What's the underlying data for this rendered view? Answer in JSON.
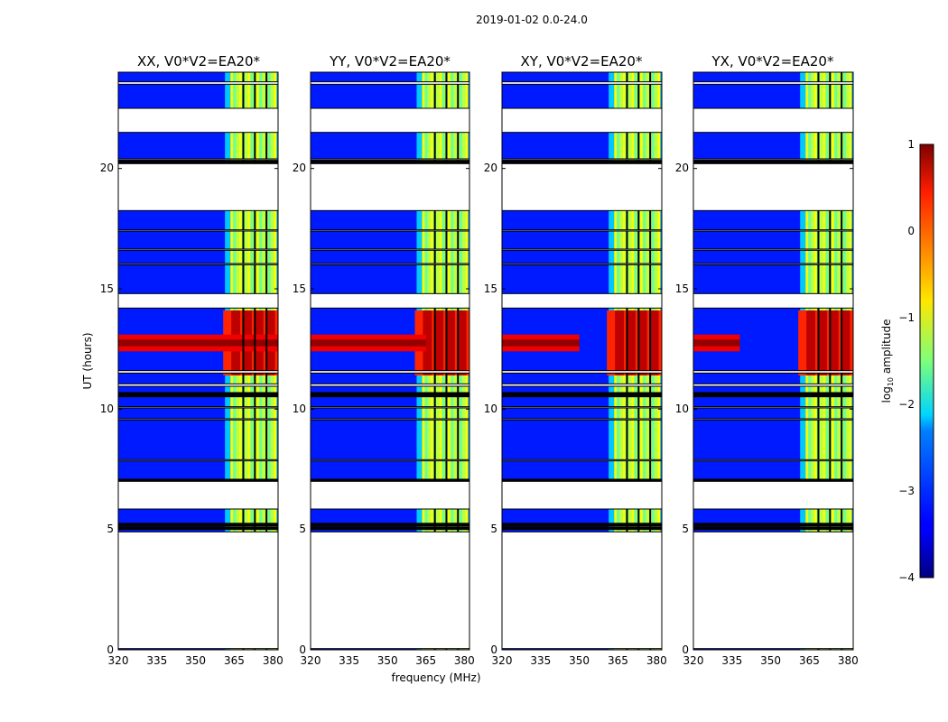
{
  "suptitle": "2019-01-02 0.0-24.0",
  "chart_data": {
    "type": "heatmap",
    "title": "2019-01-02 0.0-24.0",
    "xlabel": "frequency (MHz)",
    "ylabel": "UT (hours)",
    "xlim": [
      320,
      382
    ],
    "ylim": [
      0,
      24
    ],
    "xticks": [
      320,
      335,
      350,
      365,
      380
    ],
    "yticks": [
      0,
      5,
      10,
      15,
      20
    ],
    "colorbar": {
      "label": "log",
      "label_sub": "10",
      "label_rest": " amplitude",
      "range": [
        -4,
        1
      ],
      "ticks": [
        "1",
        "0",
        "−1",
        "−2",
        "−3",
        "−4"
      ],
      "colormap": "jet"
    },
    "panels": [
      {
        "title": "XX, V0*V2=EA20*",
        "strong_band_freq": [
          320,
          382
        ]
      },
      {
        "title": "YY, V0*V2=EA20*",
        "strong_band_freq": [
          320,
          365
        ]
      },
      {
        "title": "XY, V0*V2=EA20*",
        "strong_band_freq": [
          320,
          350
        ]
      },
      {
        "title": "YX, V0*V2=EA20*",
        "strong_band_freq": [
          320,
          338
        ]
      }
    ],
    "data_segments_hours": [
      [
        0.0,
        0.05
      ],
      [
        4.9,
        5.0
      ],
      [
        5.05,
        5.15
      ],
      [
        5.25,
        5.85
      ],
      [
        7.0,
        7.85
      ],
      [
        7.9,
        9.55
      ],
      [
        9.6,
        10.05
      ],
      [
        10.1,
        10.95
      ],
      [
        11.05,
        11.5
      ],
      [
        11.6,
        14.2
      ],
      [
        14.8,
        16.0
      ],
      [
        16.05,
        16.6
      ],
      [
        16.65,
        17.4
      ],
      [
        17.45,
        18.25
      ],
      [
        20.2,
        20.35
      ],
      [
        20.4,
        21.5
      ],
      [
        22.5,
        23.5
      ],
      [
        23.6,
        24.0
      ]
    ],
    "flag_lines_hours": [
      5.05,
      5.17,
      5.22,
      7.05,
      10.55,
      10.65,
      20.27
    ],
    "high_level_band_hours": [
      12.4,
      13.1
    ],
    "rfi_band_freq_mhz": [
      363.5,
      381.5
    ],
    "rfi_gap_channels_mhz": [
      368.5,
      373.0,
      377.5
    ]
  }
}
